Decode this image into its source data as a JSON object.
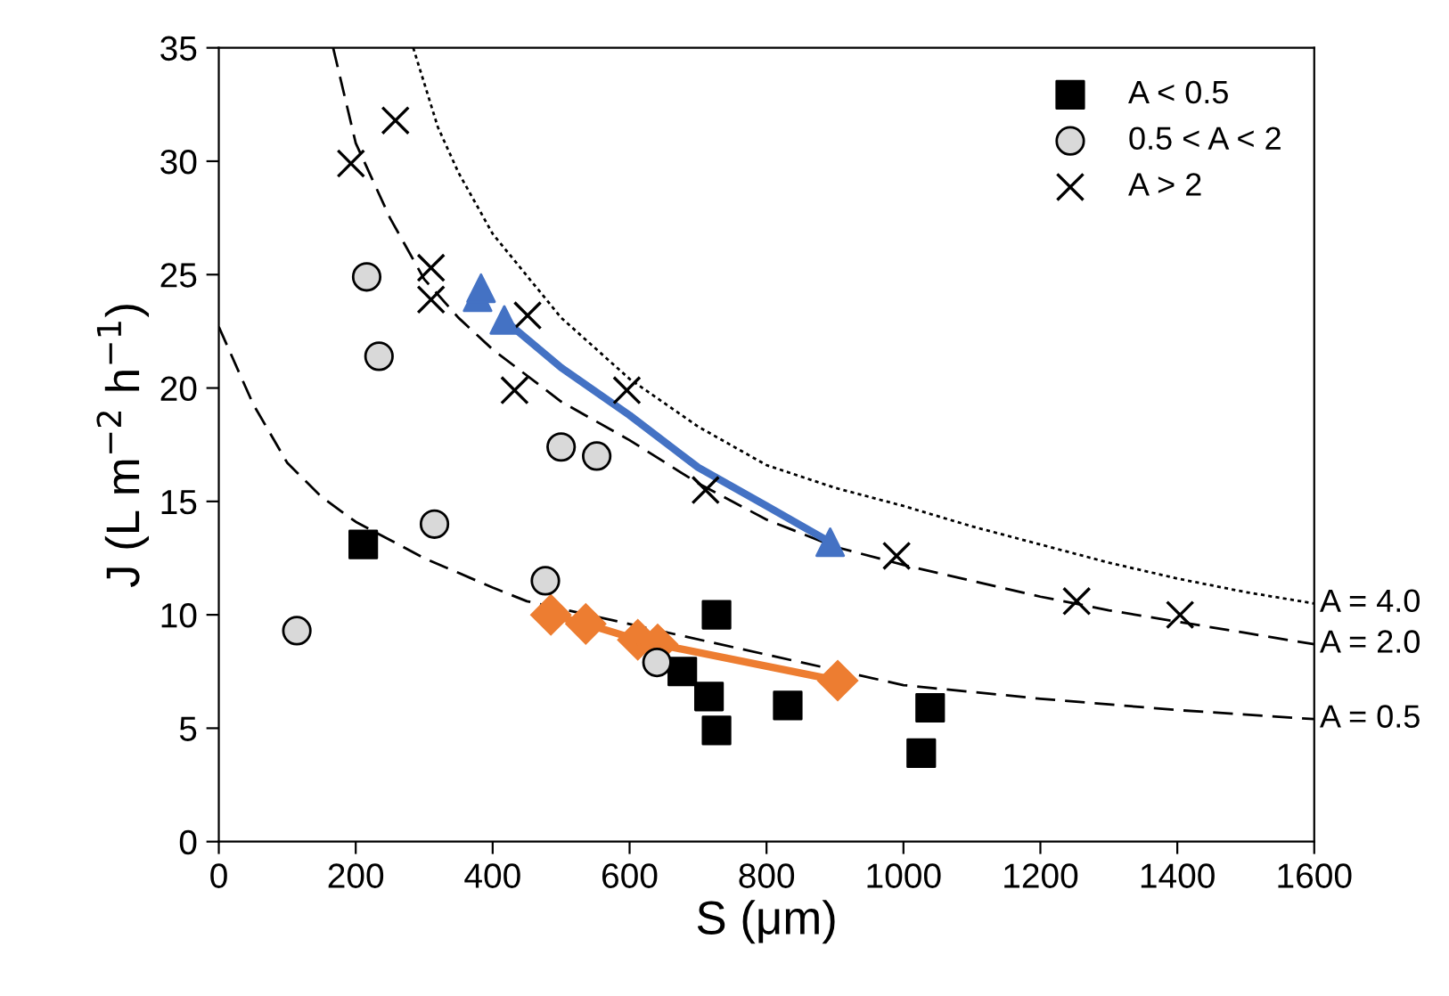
{
  "chart_data": {
    "type": "scatter",
    "xlabel": "S (μm)",
    "ylabel": "J (L m$^{−2}$ h$^{−1}$)",
    "xlim": [
      0,
      1600
    ],
    "xticks": [
      0,
      200,
      400,
      600,
      800,
      1000,
      1200,
      1400,
      1600
    ],
    "ylim": [
      0,
      35
    ],
    "yticks": [
      0,
      5,
      10,
      15,
      20,
      25,
      30,
      35
    ],
    "grid": false,
    "legend": "top right",
    "series": [
      {
        "type": "line",
        "name": "A = 4.0",
        "color": "#000000",
        "line_style": "dotted",
        "marker": "none",
        "x": [
          284,
          320,
          350,
          400,
          500,
          600,
          700,
          800,
          900,
          1000,
          1100,
          1200,
          1300,
          1400,
          1500,
          1600
        ],
        "values": [
          35,
          31.5,
          29.5,
          26.8,
          23.1,
          20.4,
          18.3,
          16.6,
          15.6,
          14.8,
          13.9,
          13.1,
          12.3,
          11.6,
          11.0,
          10.5
        ]
      },
      {
        "type": "line",
        "name": "A = 2.0",
        "color": "#000000",
        "line_style": "dashed",
        "marker": "none",
        "x": [
          167,
          200,
          250,
          300,
          350,
          400,
          500,
          600,
          700,
          800,
          900,
          1000,
          1100,
          1200,
          1300,
          1400,
          1500,
          1600
        ],
        "values": [
          35,
          30.8,
          27.5,
          24.8,
          23.1,
          21.7,
          19.4,
          17.7,
          15.8,
          14.2,
          13.0,
          12.2,
          11.5,
          10.8,
          10.2,
          9.7,
          9.2,
          8.7
        ]
      },
      {
        "type": "line",
        "name": "A = 0.5",
        "color": "#000000",
        "line_style": "dashed",
        "marker": "none",
        "x": [
          0,
          50,
          100,
          150,
          200,
          300,
          400,
          450,
          1000,
          1100,
          1200,
          1400,
          1600
        ],
        "values": [
          22.7,
          19.3,
          16.7,
          15.2,
          14.1,
          12.5,
          11.2,
          10.6,
          6.9,
          6.6,
          6.3,
          5.8,
          5.4
        ]
      },
      {
        "name": "A < 0.5",
        "color": "#000000",
        "marker": "square",
        "x": [
          211,
          727,
          677,
          716,
          727,
          831,
          1039,
          1026
        ],
        "values": [
          13.1,
          10.0,
          7.5,
          6.4,
          4.9,
          6.0,
          5.9,
          3.9
        ]
      },
      {
        "name": "0.5 < A < 2",
        "color": "#d9d9d9",
        "marker": "circle",
        "x": [
          216,
          234,
          500,
          552,
          315,
          477,
          114,
          640
        ],
        "values": [
          24.9,
          21.4,
          17.4,
          17.0,
          14.0,
          11.5,
          9.3,
          7.9
        ]
      },
      {
        "name": "A > 2",
        "color": "#000000",
        "marker": "cross",
        "x": [
          193,
          258,
          310,
          310,
          451,
          432,
          596,
          711,
          990,
          1253,
          1404
        ],
        "values": [
          29.9,
          31.8,
          25.3,
          23.9,
          23.2,
          19.9,
          19.9,
          15.5,
          12.6,
          10.6,
          10.0
        ]
      },
      {
        "type": "line",
        "color": "#ed7d31",
        "line_style": "solid",
        "marker": "diamond",
        "x": [
          485,
          536,
          612,
          641,
          904
        ],
        "values": [
          10.0,
          9.6,
          8.9,
          8.7,
          7.1
        ]
      },
      {
        "type": "line",
        "color": "#4472c4",
        "line_style": "solid",
        "marker": "none",
        "x": [
          417,
          500,
          600,
          700,
          800,
          893
        ],
        "values": [
          23.0,
          20.9,
          18.8,
          16.5,
          14.8,
          13.2
        ]
      },
      {
        "color": "#4472c4",
        "marker": "triangle",
        "x": [
          378,
          383,
          417,
          893
        ],
        "values": [
          24.0,
          24.4,
          23.0,
          13.2
        ]
      }
    ]
  }
}
